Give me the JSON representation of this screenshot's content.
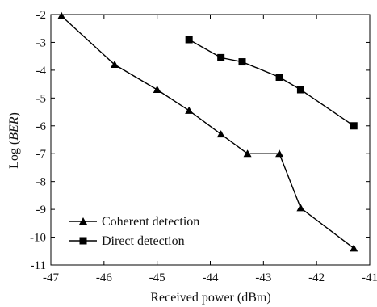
{
  "chart_data": {
    "type": "line",
    "title": "",
    "xlabel": "Received power (dBm)",
    "ylabel_prefix": "Log (",
    "ylabel_italic": "BER",
    "ylabel_suffix": ")",
    "xlim": [
      -47,
      -41
    ],
    "ylim": [
      -11,
      -2
    ],
    "x_ticks": [
      -47,
      -46,
      -45,
      -44,
      -43,
      -42,
      -41
    ],
    "y_ticks": [
      -2,
      -3,
      -4,
      -5,
      -6,
      -7,
      -8,
      -9,
      -10,
      -11
    ],
    "grid": false,
    "legend_position": "bottom-left",
    "series": [
      {
        "name": "Coherent detection",
        "marker": "triangle",
        "color": "#000000",
        "x": [
          -46.8,
          -45.8,
          -45.0,
          -44.4,
          -43.8,
          -43.3,
          -42.7,
          -42.3,
          -41.3
        ],
        "y": [
          -2.05,
          -3.8,
          -4.7,
          -5.45,
          -6.3,
          -7.0,
          -7.0,
          -8.95,
          -10.4
        ]
      },
      {
        "name": "Direct detection",
        "marker": "square",
        "color": "#000000",
        "x": [
          -44.4,
          -43.8,
          -43.4,
          -42.7,
          -42.3,
          -41.3
        ],
        "y": [
          -2.9,
          -3.55,
          -3.7,
          -4.25,
          -4.7,
          -6.0
        ]
      }
    ]
  }
}
